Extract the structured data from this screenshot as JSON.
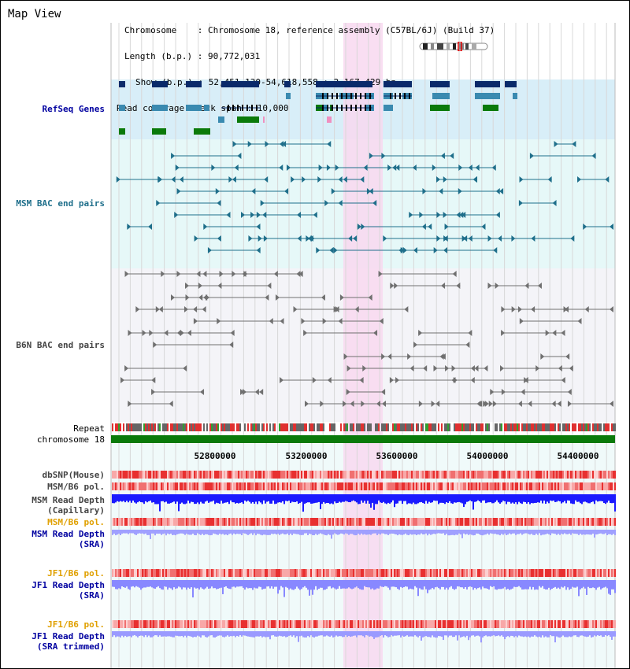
{
  "header": {
    "title": "Map View",
    "info_lines": [
      "Chromosome    : Chromosome 18, reference assembly (C57BL/6J) (Build 37)",
      "Length (b.p.) : 90,772,031",
      "Show (b.p.) : 52,451,130-54,618,558 : 2,167,429 bp",
      "Read coverage check span : 10,000"
    ]
  },
  "tracks": {
    "refseq": "RefSeq Genes",
    "msm_bac": "MSM BAC end pairs",
    "b6n_bac": "B6N BAC end pairs",
    "repeat": "Repeat",
    "chromosome": "chromosome 18",
    "dbsnp": "dbSNP(Mouse)",
    "msm_b6_pol": "MSM/B6 pol.",
    "msm_read_depth_cap_1": "MSM Read Depth",
    "msm_read_depth_cap_2": "(Capillary)",
    "msm_b6_pol_2": "MSM/B6 pol.",
    "msm_read_depth_sra_1": "MSM Read Depth",
    "msm_read_depth_sra_2": "(SRA)",
    "jf1_b6_pol": "JF1/B6 pol.",
    "jf1_read_depth_1": "JF1 Read Depth",
    "jf1_read_depth_2": "(SRA)",
    "jf1_b6_pol_2": "JF1/B6 pol.",
    "jf1_read_depth_trim_1": "JF1 Read Depth",
    "jf1_read_depth_trim_2": "(SRA trimmed)"
  },
  "axis": {
    "ticks": [
      "52800000",
      "53200000",
      "53600000",
      "54000000",
      "54400000"
    ]
  },
  "colors": {
    "refseq_bg": "#d8eef8",
    "msm_bg": "#e6f8f8",
    "b6n_bg": "#f4f4f8",
    "highlight": "#f8d8f0",
    "chrom": "#0a7a0a",
    "repeat_red": "#e03030",
    "gene_dark": "#0a2a6a",
    "gene_mid": "#3a8ab0",
    "gene_green": "#0a7a0a",
    "bac_teal": "#1f6f8b",
    "bac_gray": "#707070",
    "depth_blue": "#1a1aff",
    "depth_light": "#8888ff"
  }
}
